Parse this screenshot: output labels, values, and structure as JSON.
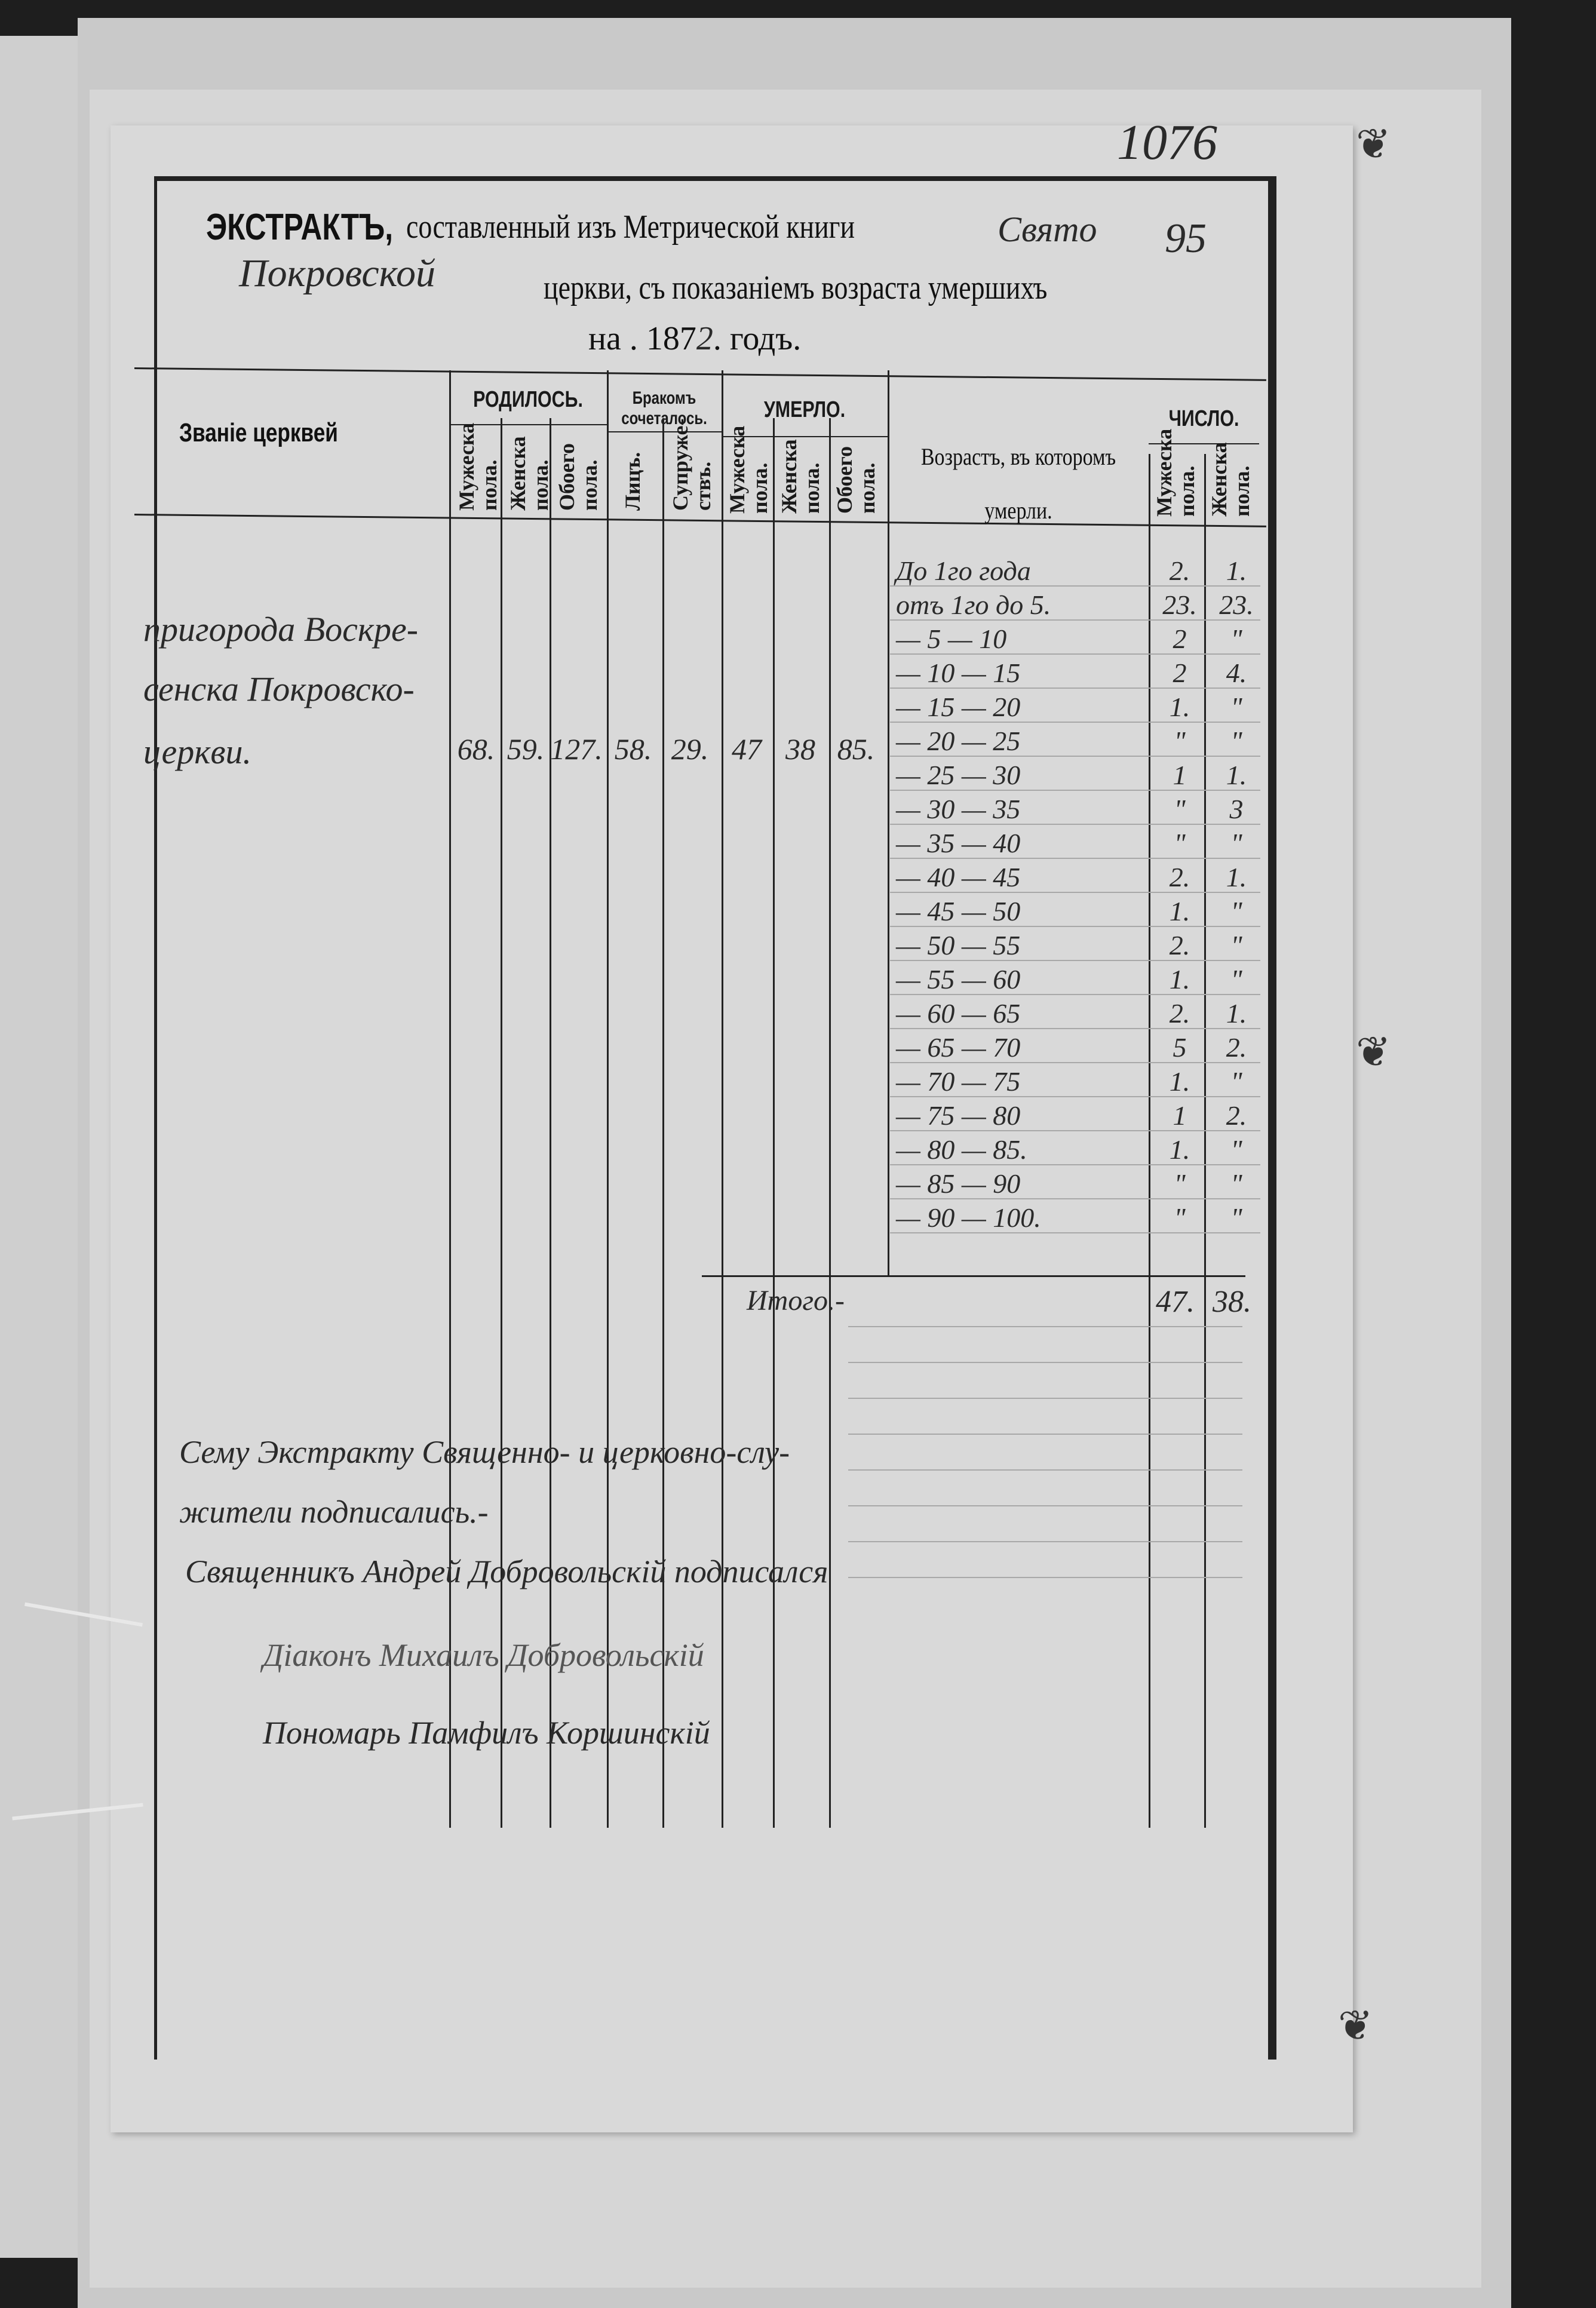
{
  "page_number": "1076",
  "header": {
    "title": "ЭКСТРАКТЪ,",
    "line1": "составленный изъ Метрической книги",
    "book_handwritten": "Свято",
    "margin_number": "95",
    "church_handwritten": "Покровской",
    "line2": "церкви, съ показаніемъ возраста умершихъ",
    "year_prefix": "на . 187",
    "year_handwritten": "2",
    "year_suffix": ". годъ."
  },
  "columns": {
    "church": "Званіе церквей",
    "born": {
      "label": "РОДИЛОСЬ.",
      "sub": [
        "Мужеска пола.",
        "Женска пола.",
        "Обоего пола."
      ]
    },
    "married": {
      "label": "Бракомъ сочеталось.",
      "sub": [
        "Лицъ.",
        "Супруже-ствъ."
      ]
    },
    "died": {
      "label": "УМЕРЛО.",
      "sub": [
        "Мужеска пола.",
        "Женска пола.",
        "Обоего пола."
      ]
    },
    "age": "Возрастъ, въ которомъ умерли.",
    "count": {
      "label": "ЧИСЛО.",
      "sub": [
        "Мужеска пола.",
        "Женска пола."
      ]
    }
  },
  "entry": {
    "church_lines": [
      "пригорода Воскре-",
      "сенска Покровско-",
      "церкви."
    ],
    "born_male": "68.",
    "born_female": "59.",
    "born_total": "127.",
    "married_persons": "58.",
    "married_couples": "29.",
    "died_male": "47",
    "died_female": "38",
    "died_total": "85."
  },
  "ages": [
    {
      "range": "До 1го года",
      "male": "2.",
      "female": "1."
    },
    {
      "range": "отъ 1го до 5.",
      "male": "23.",
      "female": "23."
    },
    {
      "range": "— 5 — 10",
      "male": "2",
      "female": "\""
    },
    {
      "range": "— 10 — 15",
      "male": "2",
      "female": "4."
    },
    {
      "range": "— 15 — 20",
      "male": "1.",
      "female": "\""
    },
    {
      "range": "— 20 — 25",
      "male": "\"",
      "female": "\""
    },
    {
      "range": "— 25 — 30",
      "male": "1",
      "female": "1."
    },
    {
      "range": "— 30 — 35",
      "male": "\"",
      "female": "3"
    },
    {
      "range": "— 35 — 40",
      "male": "\"",
      "female": "\""
    },
    {
      "range": "— 40 — 45",
      "male": "2.",
      "female": "1."
    },
    {
      "range": "— 45 — 50",
      "male": "1.",
      "female": "\""
    },
    {
      "range": "— 50 — 55",
      "male": "2.",
      "female": "\""
    },
    {
      "range": "— 55 — 60",
      "male": "1.",
      "female": "\""
    },
    {
      "range": "— 60 — 65",
      "male": "2.",
      "female": "1."
    },
    {
      "range": "— 65 — 70",
      "male": "5",
      "female": "2."
    },
    {
      "range": "— 70 — 75",
      "male": "1.",
      "female": "\""
    },
    {
      "range": "— 75 — 80",
      "male": "1",
      "female": "2."
    },
    {
      "range": "— 80 — 85.",
      "male": "1.",
      "female": "\""
    },
    {
      "range": "— 85 — 90",
      "male": "\"",
      "female": "\""
    },
    {
      "range": "— 90 — 100.",
      "male": "\"",
      "female": "\""
    }
  ],
  "totals": {
    "label": "Итого.-",
    "male": "47.",
    "female": "38."
  },
  "signatures": [
    "Сему Экстракту Священно- и церковно-слу-",
    "жители подписались.-",
    "Священникъ Андрей Добровольскій подписался",
    "Діаконъ Михаилъ Добровольскій",
    "Пономарь Памфилъ Коршинскій"
  ],
  "colors": {
    "background": "#1e1e1e",
    "paper": "#d9d9d9",
    "ink": "#1a1a1a"
  }
}
